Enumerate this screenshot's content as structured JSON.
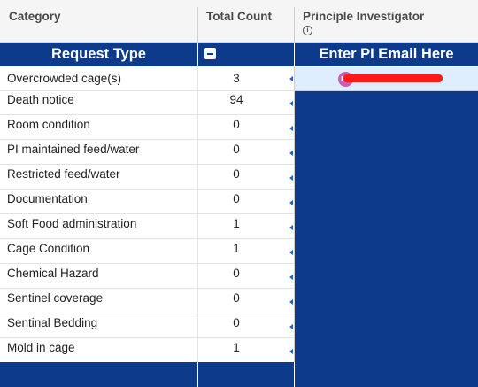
{
  "headers": {
    "category": "Category",
    "total_count": "Total Count",
    "principle_investigator": "Principle Investigator"
  },
  "group_row": {
    "request_type": "Request Type",
    "pi_prompt": "Enter PI Email Here"
  },
  "pi_entry": {
    "avatar_text": "Ku"
  },
  "rows": [
    {
      "category": "Overcrowded cage(s)",
      "count": "3"
    },
    {
      "category": "Death notice",
      "count": "94"
    },
    {
      "category": "Room condition",
      "count": "0"
    },
    {
      "category": "PI maintained feed/water",
      "count": "0"
    },
    {
      "category": "Restricted feed/water",
      "count": "0"
    },
    {
      "category": "Documentation",
      "count": "0"
    },
    {
      "category": "Soft Food administration",
      "count": "1"
    },
    {
      "category": "Cage Condition",
      "count": "1"
    },
    {
      "category": "Chemical Hazard",
      "count": "0"
    },
    {
      "category": "Sentinel coverage",
      "count": "0"
    },
    {
      "category": "Sentinal Bedding",
      "count": "0"
    },
    {
      "category": "Mold in cage",
      "count": "1"
    }
  ],
  "colors": {
    "accent": "#0d3a8a",
    "entry_bg": "#dfeefe",
    "redaction": "#ff1a1a"
  }
}
